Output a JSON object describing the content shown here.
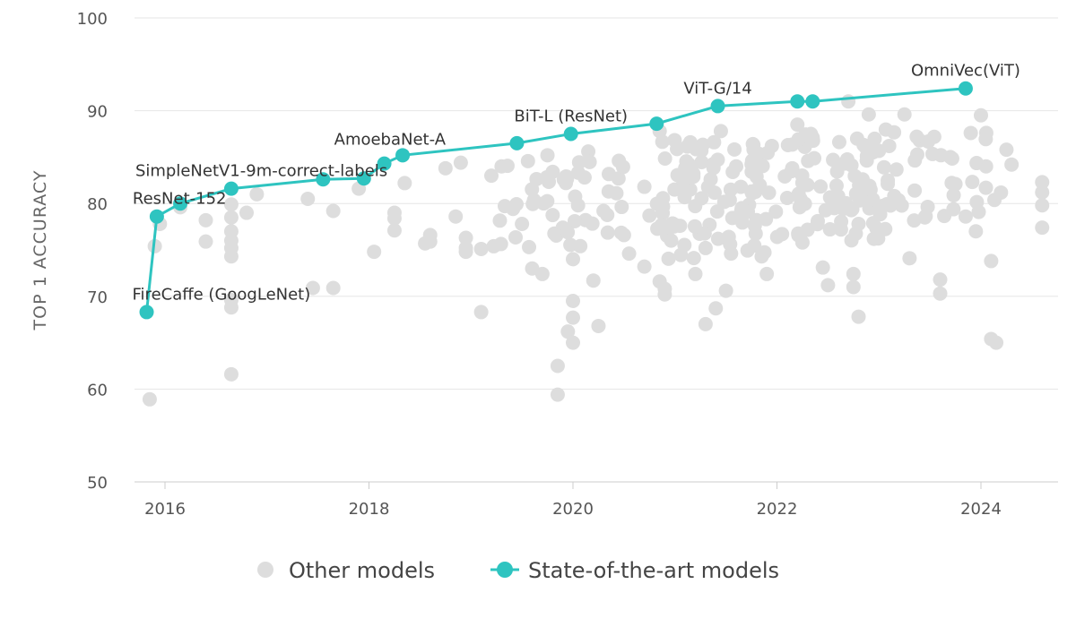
{
  "chart_data": {
    "type": "scatter",
    "ylabel": "TOP 1 ACCURACY",
    "xlabel": "",
    "xlim": [
      2015.75,
      2024.7
    ],
    "ylim": [
      50,
      100
    ],
    "x_ticks": [
      2016,
      2018,
      2020,
      2022,
      2024
    ],
    "y_ticks": [
      50,
      60,
      70,
      80,
      90,
      100
    ],
    "grid": "horizontal",
    "legend_position": "bottom",
    "colors": {
      "other": "#dddddd",
      "sota": "#2ec4c0",
      "grid": "#e6e6e6",
      "axis": "#cccccc"
    },
    "series": [
      {
        "name": "Other models",
        "points": [
          [
            2015.85,
            58.9
          ],
          [
            2015.9,
            75.4
          ],
          [
            2015.95,
            77.8
          ],
          [
            2016.15,
            79.6
          ],
          [
            2016.4,
            78.2
          ],
          [
            2016.4,
            75.9
          ],
          [
            2016.65,
            61.6
          ],
          [
            2016.65,
            68.8
          ],
          [
            2016.65,
            69.6
          ],
          [
            2016.65,
            74.3
          ],
          [
            2016.65,
            75.2
          ],
          [
            2016.65,
            76.0
          ],
          [
            2016.65,
            77.0
          ],
          [
            2016.65,
            78.5
          ],
          [
            2016.65,
            79.9
          ],
          [
            2016.8,
            79.0
          ],
          [
            2016.9,
            81.0
          ],
          [
            2017.4,
            80.5
          ],
          [
            2017.45,
            70.9
          ],
          [
            2017.65,
            70.9
          ],
          [
            2017.65,
            79.2
          ],
          [
            2017.9,
            81.6
          ],
          [
            2018.05,
            74.8
          ],
          [
            2018.25,
            77.1
          ],
          [
            2018.25,
            78.4
          ],
          [
            2018.25,
            79.0
          ],
          [
            2018.35,
            82.2
          ],
          [
            2018.55,
            75.7
          ],
          [
            2018.6,
            75.9
          ],
          [
            2018.6,
            76.6
          ],
          [
            2018.75,
            83.8
          ],
          [
            2018.85,
            78.6
          ],
          [
            2018.9,
            84.4
          ],
          [
            2018.95,
            74.8
          ],
          [
            2018.95,
            75.2
          ],
          [
            2018.95,
            76.3
          ],
          [
            2019.1,
            68.3
          ],
          [
            2019.1,
            75.1
          ],
          [
            2019.2,
            83.0
          ],
          [
            2019.3,
            84.0
          ],
          [
            2019.5,
            77.8
          ],
          [
            2019.6,
            73.0
          ],
          [
            2019.7,
            72.4
          ],
          [
            2019.75,
            85.2
          ],
          [
            2019.85,
            62.5
          ],
          [
            2019.85,
            59.4
          ],
          [
            2019.9,
            77.4
          ],
          [
            2019.95,
            66.2
          ],
          [
            2020.0,
            65.0
          ],
          [
            2020.0,
            67.7
          ],
          [
            2020.0,
            69.5
          ],
          [
            2020.0,
            74.0
          ],
          [
            2020.05,
            79.8
          ],
          [
            2020.15,
            85.6
          ],
          [
            2020.2,
            71.7
          ],
          [
            2020.25,
            66.8
          ],
          [
            2020.3,
            79.2
          ],
          [
            2020.35,
            81.3
          ],
          [
            2020.45,
            84.6
          ],
          [
            2020.5,
            76.6
          ],
          [
            2020.55,
            74.6
          ],
          [
            2020.7,
            73.2
          ],
          [
            2020.7,
            81.8
          ],
          [
            2020.75,
            78.7
          ],
          [
            2020.85,
            87.8
          ],
          [
            2020.85,
            71.6
          ],
          [
            2020.9,
            70.2
          ],
          [
            2020.9,
            70.8
          ],
          [
            2021.05,
            77.6
          ],
          [
            2021.1,
            83.8
          ],
          [
            2021.15,
            86.6
          ],
          [
            2021.2,
            72.4
          ],
          [
            2021.3,
            67.0
          ],
          [
            2021.3,
            75.2
          ],
          [
            2021.35,
            82.6
          ],
          [
            2021.4,
            68.7
          ],
          [
            2021.45,
            87.8
          ],
          [
            2021.5,
            70.6
          ],
          [
            2021.55,
            74.6
          ],
          [
            2021.6,
            84.0
          ],
          [
            2021.65,
            79.2
          ],
          [
            2021.75,
            81.3
          ],
          [
            2021.8,
            82.9
          ],
          [
            2021.85,
            74.3
          ],
          [
            2021.9,
            72.4
          ],
          [
            2021.95,
            86.2
          ],
          [
            2022.05,
            76.7
          ],
          [
            2022.1,
            80.6
          ],
          [
            2022.15,
            83.8
          ],
          [
            2022.2,
            88.5
          ],
          [
            2022.25,
            75.8
          ],
          [
            2022.3,
            82.0
          ],
          [
            2022.35,
            87.1
          ],
          [
            2022.4,
            78.1
          ],
          [
            2022.45,
            73.1
          ],
          [
            2022.5,
            71.2
          ],
          [
            2022.55,
            84.7
          ],
          [
            2022.6,
            80.8
          ],
          [
            2022.7,
            91.0
          ],
          [
            2022.75,
            71.0
          ],
          [
            2022.75,
            72.4
          ],
          [
            2022.8,
            67.8
          ],
          [
            2022.8,
            77.8
          ],
          [
            2022.85,
            86.3
          ],
          [
            2022.9,
            89.6
          ],
          [
            2022.95,
            76.2
          ],
          [
            2023.05,
            83.9
          ],
          [
            2023.1,
            86.2
          ],
          [
            2023.15,
            80.8
          ],
          [
            2023.25,
            89.6
          ],
          [
            2023.3,
            74.1
          ],
          [
            2023.35,
            81.4
          ],
          [
            2023.4,
            86.8
          ],
          [
            2023.45,
            78.5
          ],
          [
            2023.6,
            71.8
          ],
          [
            2023.6,
            70.3
          ],
          [
            2023.7,
            85.0
          ],
          [
            2023.75,
            82.1
          ],
          [
            2023.85,
            78.6
          ],
          [
            2023.9,
            87.6
          ],
          [
            2023.95,
            77.0
          ],
          [
            2024.0,
            89.5
          ],
          [
            2024.05,
            84.0
          ],
          [
            2024.1,
            73.8
          ],
          [
            2024.1,
            65.4
          ],
          [
            2024.15,
            65.0
          ],
          [
            2024.25,
            85.8
          ],
          [
            2024.3,
            84.2
          ],
          [
            2024.6,
            82.3
          ],
          [
            2024.6,
            81.2
          ],
          [
            2024.6,
            79.8
          ],
          [
            2024.6,
            77.4
          ]
        ]
      },
      {
        "name": "State-of-the-art models",
        "points": [
          [
            2015.82,
            68.3
          ],
          [
            2015.92,
            78.6
          ],
          [
            2016.15,
            80.0
          ],
          [
            2016.65,
            81.6
          ],
          [
            2017.55,
            82.6
          ],
          [
            2017.95,
            82.7
          ],
          [
            2018.15,
            84.3
          ],
          [
            2018.33,
            85.2
          ],
          [
            2019.45,
            86.5
          ],
          [
            2019.98,
            87.5
          ],
          [
            2020.82,
            88.6
          ],
          [
            2021.42,
            90.5
          ],
          [
            2022.2,
            91.0
          ],
          [
            2022.35,
            91.0
          ],
          [
            2023.85,
            92.4
          ]
        ]
      }
    ],
    "annotations": [
      {
        "text": "FireCaffe (GoogLeNet)",
        "x": 2015.82,
        "y": 68.3
      },
      {
        "text": "ResNet-152",
        "x": 2015.92,
        "y": 78.6
      },
      {
        "text": "SimpleNetV1-9m-correct-labels",
        "x": 2016.65,
        "y": 81.6
      },
      {
        "text": "AmoebaNet-A",
        "x": 2018.33,
        "y": 85.2
      },
      {
        "text": "BiT-L (ResNet)",
        "x": 2019.98,
        "y": 87.5
      },
      {
        "text": "ViT-G/14",
        "x": 2021.42,
        "y": 90.5
      },
      {
        "text": "OmniVec(ViT)",
        "x": 2023.85,
        "y": 92.4
      }
    ],
    "legend": [
      "Other models",
      "State-of-the-art models"
    ]
  }
}
